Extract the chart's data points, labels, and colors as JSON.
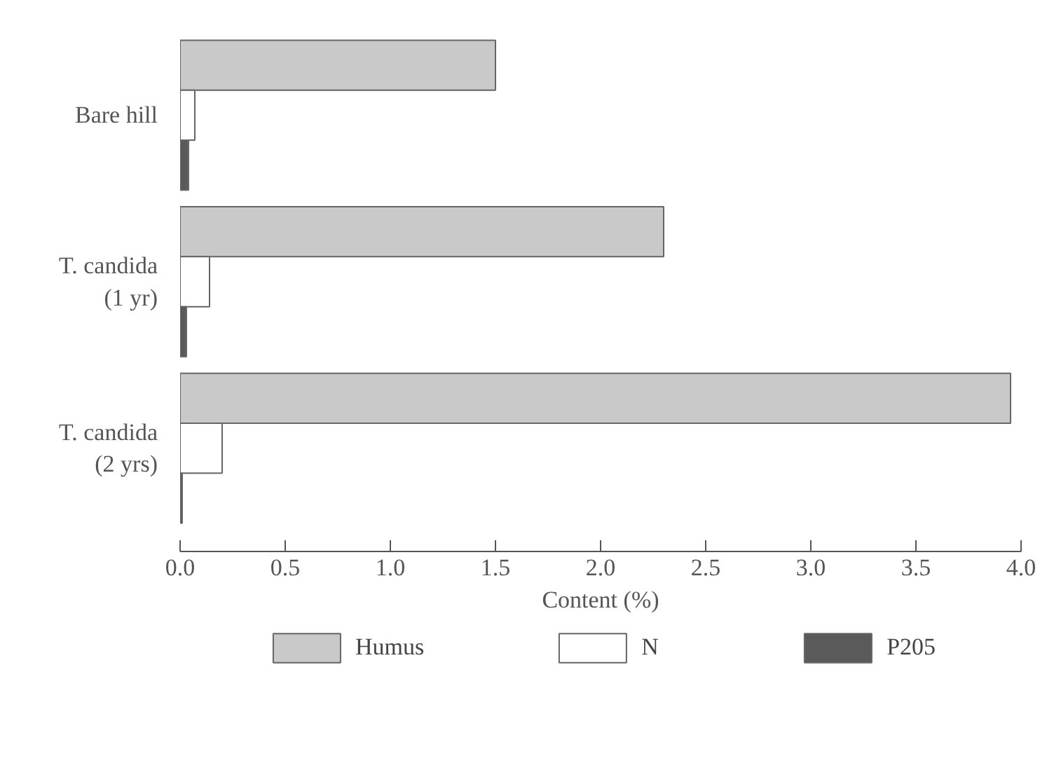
{
  "chart_data": {
    "type": "bar",
    "orientation": "horizontal",
    "xlabel": "Content (%)",
    "categories": [
      "Bare hill",
      "T. candida\n(1 yr)",
      "T. candida\n(2 yrs)"
    ],
    "series": [
      {
        "name": "Humus",
        "color": "#c9c9c9",
        "values": [
          1.5,
          2.3,
          3.95
        ]
      },
      {
        "name": "N",
        "color": "#ffffff",
        "values": [
          0.07,
          0.14,
          0.2
        ]
      },
      {
        "name": "P205",
        "color": "#5a5a5a",
        "values": [
          0.04,
          0.03,
          0.01
        ]
      }
    ],
    "xlim": [
      0,
      4
    ],
    "xticks": [
      {
        "value": 0,
        "label": "0.0"
      },
      {
        "value": 0.5,
        "label": "0.5"
      },
      {
        "value": 1,
        "label": "1.0"
      },
      {
        "value": 1.5,
        "label": "1.5"
      },
      {
        "value": 2,
        "label": "2.0"
      },
      {
        "value": 2.5,
        "label": "2.5"
      },
      {
        "value": 3,
        "label": "3.0"
      },
      {
        "value": 3.5,
        "label": "3.5"
      },
      {
        "value": 4,
        "label": "4.0"
      }
    ],
    "grid": false,
    "legend": "bottom"
  }
}
